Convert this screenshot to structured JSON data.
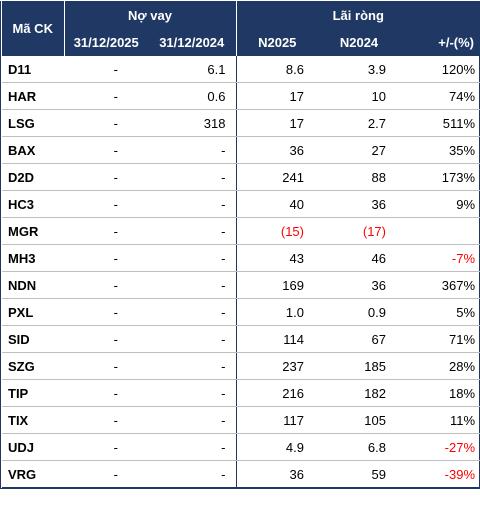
{
  "header": {
    "stock_col": "Mã CK",
    "debt_group": "Nợ vay",
    "profit_group": "Lãi ròng",
    "debt_2025": "31/12/2025",
    "debt_2024": "31/12/2024",
    "profit_2025": "N2025",
    "profit_2024": "N2024",
    "change": "+/-(%)"
  },
  "rows": [
    {
      "symbol": "D11",
      "debt_2025": "-",
      "debt_2024": "6.1",
      "profit_2025": "8.6",
      "profit_2024": "3.9",
      "change": "120%"
    },
    {
      "symbol": "HAR",
      "debt_2025": "-",
      "debt_2024": "0.6",
      "profit_2025": "17",
      "profit_2024": "10",
      "change": "74%"
    },
    {
      "symbol": "LSG",
      "debt_2025": "-",
      "debt_2024": "318",
      "profit_2025": "17",
      "profit_2024": "2.7",
      "change": "511%"
    },
    {
      "symbol": "BAX",
      "debt_2025": "-",
      "debt_2024": "-",
      "profit_2025": "36",
      "profit_2024": "27",
      "change": "35%"
    },
    {
      "symbol": "D2D",
      "debt_2025": "-",
      "debt_2024": "-",
      "profit_2025": "241",
      "profit_2024": "88",
      "change": "173%"
    },
    {
      "symbol": "HC3",
      "debt_2025": "-",
      "debt_2024": "-",
      "profit_2025": "40",
      "profit_2024": "36",
      "change": "9%"
    },
    {
      "symbol": "MGR",
      "debt_2025": "-",
      "debt_2024": "-",
      "profit_2025": "(15)",
      "profit_2024": "(17)",
      "change": ""
    },
    {
      "symbol": "MH3",
      "debt_2025": "-",
      "debt_2024": "-",
      "profit_2025": "43",
      "profit_2024": "46",
      "change": "-7%"
    },
    {
      "symbol": "NDN",
      "debt_2025": "-",
      "debt_2024": "-",
      "profit_2025": "169",
      "profit_2024": "36",
      "change": "367%"
    },
    {
      "symbol": "PXL",
      "debt_2025": "-",
      "debt_2024": "-",
      "profit_2025": "1.0",
      "profit_2024": "0.9",
      "change": "5%"
    },
    {
      "symbol": "SID",
      "debt_2025": "-",
      "debt_2024": "-",
      "profit_2025": "114",
      "profit_2024": "67",
      "change": "71%"
    },
    {
      "symbol": "SZG",
      "debt_2025": "-",
      "debt_2024": "-",
      "profit_2025": "237",
      "profit_2024": "185",
      "change": "28%"
    },
    {
      "symbol": "TIP",
      "debt_2025": "-",
      "debt_2024": "-",
      "profit_2025": "216",
      "profit_2024": "182",
      "change": "18%"
    },
    {
      "symbol": "TIX",
      "debt_2025": "-",
      "debt_2024": "-",
      "profit_2025": "117",
      "profit_2024": "105",
      "change": "11%"
    },
    {
      "symbol": "UDJ",
      "debt_2025": "-",
      "debt_2024": "-",
      "profit_2025": "4.9",
      "profit_2024": "6.8",
      "change": "-27%"
    },
    {
      "symbol": "VRG",
      "debt_2025": "-",
      "debt_2024": "-",
      "profit_2025": "36",
      "profit_2024": "59",
      "change": "-39%"
    }
  ],
  "colors": {
    "header_bg": "#1f3864",
    "header_text": "#ffffff",
    "negative": "#ff0000",
    "row_border": "#bfbfbf"
  }
}
